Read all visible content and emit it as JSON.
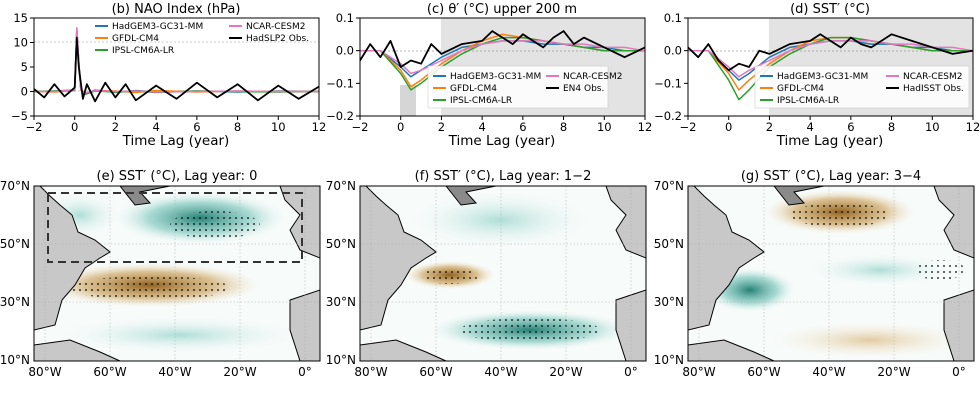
{
  "chart_data": [
    {
      "type": "line",
      "title": "(b) NAO Index (hPa)",
      "xlabel": "Time Lag (year)",
      "ylabel": "",
      "xlim": [
        -2,
        12
      ],
      "ylim": [
        -5,
        15
      ],
      "xticks": [
        "−2",
        "0",
        "2",
        "4",
        "6",
        "8",
        "10",
        "12"
      ],
      "yticks": [
        "−5",
        "0",
        "5",
        "10",
        "15"
      ],
      "grid": false,
      "legend_position": "top-center",
      "legend_columns": 2,
      "series": [
        {
          "name": "HadGEM3-GC31-MM",
          "color": "#1f77b4",
          "x": [
            -2,
            -1,
            0,
            0.1,
            0.2,
            0.3,
            0.5,
            1,
            2,
            3,
            4,
            6,
            8,
            10,
            12
          ],
          "y": [
            0,
            0.1,
            0.3,
            12.5,
            6,
            0.5,
            -0.5,
            0.3,
            -0.2,
            0.2,
            -0.1,
            0.1,
            -0.1,
            0.1,
            0
          ]
        },
        {
          "name": "GFDL-CM4",
          "color": "#ff7f0e",
          "x": [
            -2,
            -1,
            0,
            0.1,
            0.2,
            0.3,
            0.5,
            1,
            2,
            3,
            4,
            6,
            8,
            10,
            12
          ],
          "y": [
            0,
            -0.1,
            0.2,
            12.8,
            5.5,
            0.3,
            -0.4,
            0.2,
            0.1,
            -0.2,
            0.2,
            -0.1,
            0.1,
            0,
            0
          ]
        },
        {
          "name": "IPSL-CM6A-LR",
          "color": "#2ca02c",
          "x": [
            -2,
            -1,
            0,
            0.1,
            0.2,
            0.3,
            0.5,
            1,
            2,
            3,
            4,
            6,
            8,
            10,
            12
          ],
          "y": [
            0,
            0.1,
            0.2,
            12.3,
            5.8,
            0.4,
            -0.6,
            0.1,
            -0.1,
            0.1,
            -0.2,
            0.1,
            0,
            -0.1,
            0
          ]
        },
        {
          "name": "NCAR-CESM2",
          "color": "#e377c2",
          "x": [
            -2,
            -1,
            0,
            0.1,
            0.2,
            0.3,
            0.5,
            1,
            2,
            3,
            4,
            6,
            8,
            10,
            12
          ],
          "y": [
            0,
            0,
            0.3,
            13,
            6.2,
            0.4,
            -0.3,
            0.2,
            0,
            0.1,
            -0.1,
            0,
            0.1,
            0,
            0
          ]
        },
        {
          "name": "HadSLP2 Obs.",
          "color": "#000000",
          "x": [
            -2,
            -1.5,
            -1,
            -0.5,
            0,
            0.1,
            0.2,
            0.4,
            0.6,
            1,
            1.5,
            2,
            2.5,
            3,
            4,
            5,
            6,
            7,
            8,
            9,
            10,
            11,
            12
          ],
          "y": [
            0.5,
            -1.2,
            1.5,
            -1,
            0.8,
            11,
            5,
            -1.5,
            1.5,
            -2,
            1.8,
            -1.2,
            1.5,
            -1.8,
            1.2,
            -1.5,
            1.8,
            -1.2,
            1.5,
            -1.8,
            1.2,
            -1.5,
            1
          ]
        }
      ]
    },
    {
      "type": "line",
      "title": "(c) θ′ (°C) upper 200 m",
      "xlabel": "Time Lag (year)",
      "ylabel": "",
      "xlim": [
        -2,
        12
      ],
      "ylim": [
        -0.2,
        0.1
      ],
      "xticks": [
        "−2",
        "0",
        "2",
        "4",
        "6",
        "8",
        "10",
        "12"
      ],
      "yticks": [
        "−0.2",
        "−0.1",
        "0.0",
        "0.1"
      ],
      "grid": false,
      "legend_position": "lower-center",
      "legend_columns": 2,
      "series": [
        {
          "name": "HadGEM3-GC31-MM",
          "color": "#1f77b4",
          "x": [
            -2,
            -1,
            0,
            0.5,
            1,
            2,
            3,
            4,
            5,
            6,
            7,
            8,
            9,
            10,
            11,
            12
          ],
          "y": [
            0,
            0,
            -0.05,
            -0.08,
            -0.06,
            -0.02,
            0.01,
            0.02,
            0.03,
            0.03,
            0.02,
            0.02,
            0.01,
            0.01,
            0,
            0
          ]
        },
        {
          "name": "GFDL-CM4",
          "color": "#ff7f0e",
          "x": [
            -2,
            -1,
            0,
            0.5,
            1,
            2,
            3,
            4,
            5,
            6,
            7,
            8,
            9,
            10,
            11,
            12
          ],
          "y": [
            0,
            0,
            -0.06,
            -0.11,
            -0.09,
            -0.04,
            0,
            0.03,
            0.05,
            0.04,
            0.03,
            0.02,
            0.01,
            0,
            0,
            0
          ]
        },
        {
          "name": "IPSL-CM6A-LR",
          "color": "#2ca02c",
          "x": [
            -2,
            -1,
            0,
            0.5,
            1,
            2,
            3,
            4,
            5,
            6,
            7,
            8,
            9,
            10,
            11,
            12
          ],
          "y": [
            0,
            0,
            -0.07,
            -0.12,
            -0.1,
            -0.05,
            -0.01,
            0.02,
            0.04,
            0.04,
            0.03,
            0.02,
            0.01,
            0,
            0,
            0
          ]
        },
        {
          "name": "NCAR-CESM2",
          "color": "#e377c2",
          "x": [
            -2,
            -1,
            0,
            0.5,
            1,
            2,
            3,
            4,
            5,
            6,
            7,
            8,
            9,
            10,
            11,
            12
          ],
          "y": [
            0,
            0,
            -0.04,
            -0.07,
            -0.06,
            -0.03,
            0,
            0.02,
            0.03,
            0.03,
            0.03,
            0.02,
            0.02,
            0.01,
            0.01,
            0
          ]
        },
        {
          "name": "EN4 Obs.",
          "color": "#000000",
          "x": [
            -2,
            -1.5,
            -1,
            -0.5,
            0,
            0.5,
            1,
            1.5,
            2,
            3,
            4,
            4.5,
            5,
            5.5,
            6,
            6.5,
            7,
            7.5,
            8,
            8.5,
            9,
            10,
            11,
            12
          ],
          "y": [
            -0.03,
            0.02,
            -0.02,
            0.03,
            -0.05,
            -0.03,
            -0.04,
            0.02,
            -0.01,
            0.02,
            0.03,
            0.06,
            0.04,
            0.02,
            0.05,
            0.03,
            0.01,
            0.04,
            0.06,
            0.02,
            0.04,
            0.01,
            -0.02,
            0.01
          ]
        }
      ]
    },
    {
      "type": "line",
      "title": "(d) SST′ (°C)",
      "xlabel": "Time Lag (year)",
      "ylabel": "",
      "xlim": [
        -2,
        12
      ],
      "ylim": [
        -0.2,
        0.1
      ],
      "xticks": [
        "−2",
        "0",
        "2",
        "4",
        "6",
        "8",
        "10",
        "12"
      ],
      "yticks": [
        "−0.2",
        "−0.1",
        "0.0",
        "0.1"
      ],
      "grid": false,
      "legend_position": "lower-center",
      "legend_columns": 2,
      "series": [
        {
          "name": "HadGEM3-GC31-MM",
          "color": "#1f77b4",
          "x": [
            -2,
            -1,
            0,
            0.5,
            1,
            2,
            3,
            4,
            5,
            6,
            7,
            8,
            9,
            10,
            11,
            12
          ],
          "y": [
            0,
            0,
            -0.06,
            -0.09,
            -0.07,
            -0.02,
            0.01,
            0.02,
            0.03,
            0.03,
            0.02,
            0.02,
            0.01,
            0.01,
            0,
            0
          ]
        },
        {
          "name": "GFDL-CM4",
          "color": "#ff7f0e",
          "x": [
            -2,
            -1,
            0,
            0.5,
            1,
            2,
            3,
            4,
            5,
            6,
            7,
            8,
            9,
            10,
            11,
            12
          ],
          "y": [
            0,
            0,
            -0.07,
            -0.12,
            -0.09,
            -0.04,
            0,
            0.03,
            0.04,
            0.04,
            0.03,
            0.02,
            0.01,
            0,
            0,
            0
          ]
        },
        {
          "name": "IPSL-CM6A-LR",
          "color": "#2ca02c",
          "x": [
            -2,
            -1,
            0,
            0.5,
            1,
            2,
            3,
            4,
            5,
            6,
            7,
            8,
            9,
            10,
            11,
            12
          ],
          "y": [
            0,
            0,
            -0.09,
            -0.15,
            -0.12,
            -0.05,
            -0.01,
            0.02,
            0.04,
            0.04,
            0.03,
            0.02,
            0.01,
            0,
            0,
            0
          ]
        },
        {
          "name": "NCAR-CESM2",
          "color": "#e377c2",
          "x": [
            -2,
            -1,
            0,
            0.5,
            1,
            2,
            3,
            4,
            5,
            6,
            7,
            8,
            9,
            10,
            11,
            12
          ],
          "y": [
            0,
            0,
            -0.05,
            -0.08,
            -0.06,
            -0.03,
            0,
            0.02,
            0.03,
            0.03,
            0.03,
            0.02,
            0.02,
            0.01,
            0.01,
            0
          ]
        },
        {
          "name": "HadISST Obs.",
          "color": "#000000",
          "x": [
            -2,
            -1.5,
            -1,
            -0.5,
            0,
            0.5,
            1,
            1.5,
            2,
            3,
            4,
            4.5,
            5,
            5.5,
            6,
            6.5,
            7,
            7.5,
            8,
            9,
            10,
            11,
            12
          ],
          "y": [
            0.01,
            -0.02,
            0.02,
            -0.03,
            -0.06,
            -0.04,
            -0.05,
            0,
            -0.01,
            0.02,
            0.03,
            0.05,
            0.03,
            0.01,
            0.04,
            0.02,
            0.01,
            0.03,
            0.05,
            0.03,
            0.01,
            -0.01,
            0
          ]
        }
      ]
    },
    {
      "type": "heatmap",
      "title": "(e) SST′ (°C), Lag year: 0",
      "yticks": [
        "70°N",
        "50°N",
        "30°N",
        "10°N"
      ],
      "xticks": [
        "80°W",
        "60°W",
        "40°W",
        "20°W",
        "0°"
      ],
      "highlight_box": true
    },
    {
      "type": "heatmap",
      "title": "(f) SST′ (°C), Lag year: 1−2",
      "yticks": [
        "70°N",
        "50°N",
        "30°N",
        "10°N"
      ],
      "xticks": [
        "80°W",
        "60°W",
        "40°W",
        "20°W",
        "0°"
      ]
    },
    {
      "type": "heatmap",
      "title": "(g) SST′ (°C), Lag year: 3−4",
      "yticks": [
        "70°N",
        "50°N",
        "30°N",
        "10°N"
      ],
      "xticks": [
        "80°W",
        "60°W",
        "40°W",
        "20°W",
        "0°"
      ]
    }
  ],
  "colors": {
    "land": "#c8c8c8",
    "land_dark": "#8a8a8a",
    "ocean_neutral": "#ffffff",
    "warm": "#a8701e",
    "cool": "#2a9d8f",
    "obs_band": "#dcdcdc"
  }
}
